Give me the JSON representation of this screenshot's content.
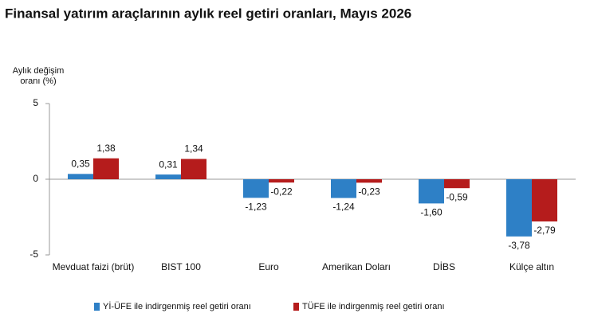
{
  "chart_data": {
    "type": "bar",
    "title": "Finansal yatırım araçlarının aylık reel getiri oranları, Mayıs 2026",
    "y_label": [
      "Aylık değişim",
      "oranı (%)"
    ],
    "categories": [
      "Mevduat faizi (brüt)",
      "BIST 100",
      "Euro",
      "Amerikan Doları",
      "DİBS",
      "Külçe altın"
    ],
    "series": [
      {
        "name": "Yİ-ÜFE ile indirgenmiş reel getiri oranı",
        "color": "#2e80c6",
        "values": [
          0.35,
          0.31,
          -1.23,
          -1.24,
          -1.6,
          -3.78
        ],
        "value_labels": [
          "0,35",
          "0,31",
          "-1,23",
          "-1,24",
          "-1,60",
          "-3,78"
        ]
      },
      {
        "name": "TÜFE ile indirgenmiş reel getiri oranı",
        "color": "#b51c1c",
        "values": [
          1.38,
          1.34,
          -0.22,
          -0.23,
          -0.59,
          -2.79
        ],
        "value_labels": [
          "1,38",
          "1,34",
          "-0,22",
          "-0,23",
          "-0,59",
          "-2,79"
        ]
      }
    ],
    "ylim": [
      -5,
      5
    ],
    "yticks": [
      -5,
      0,
      5
    ],
    "grid": false
  }
}
